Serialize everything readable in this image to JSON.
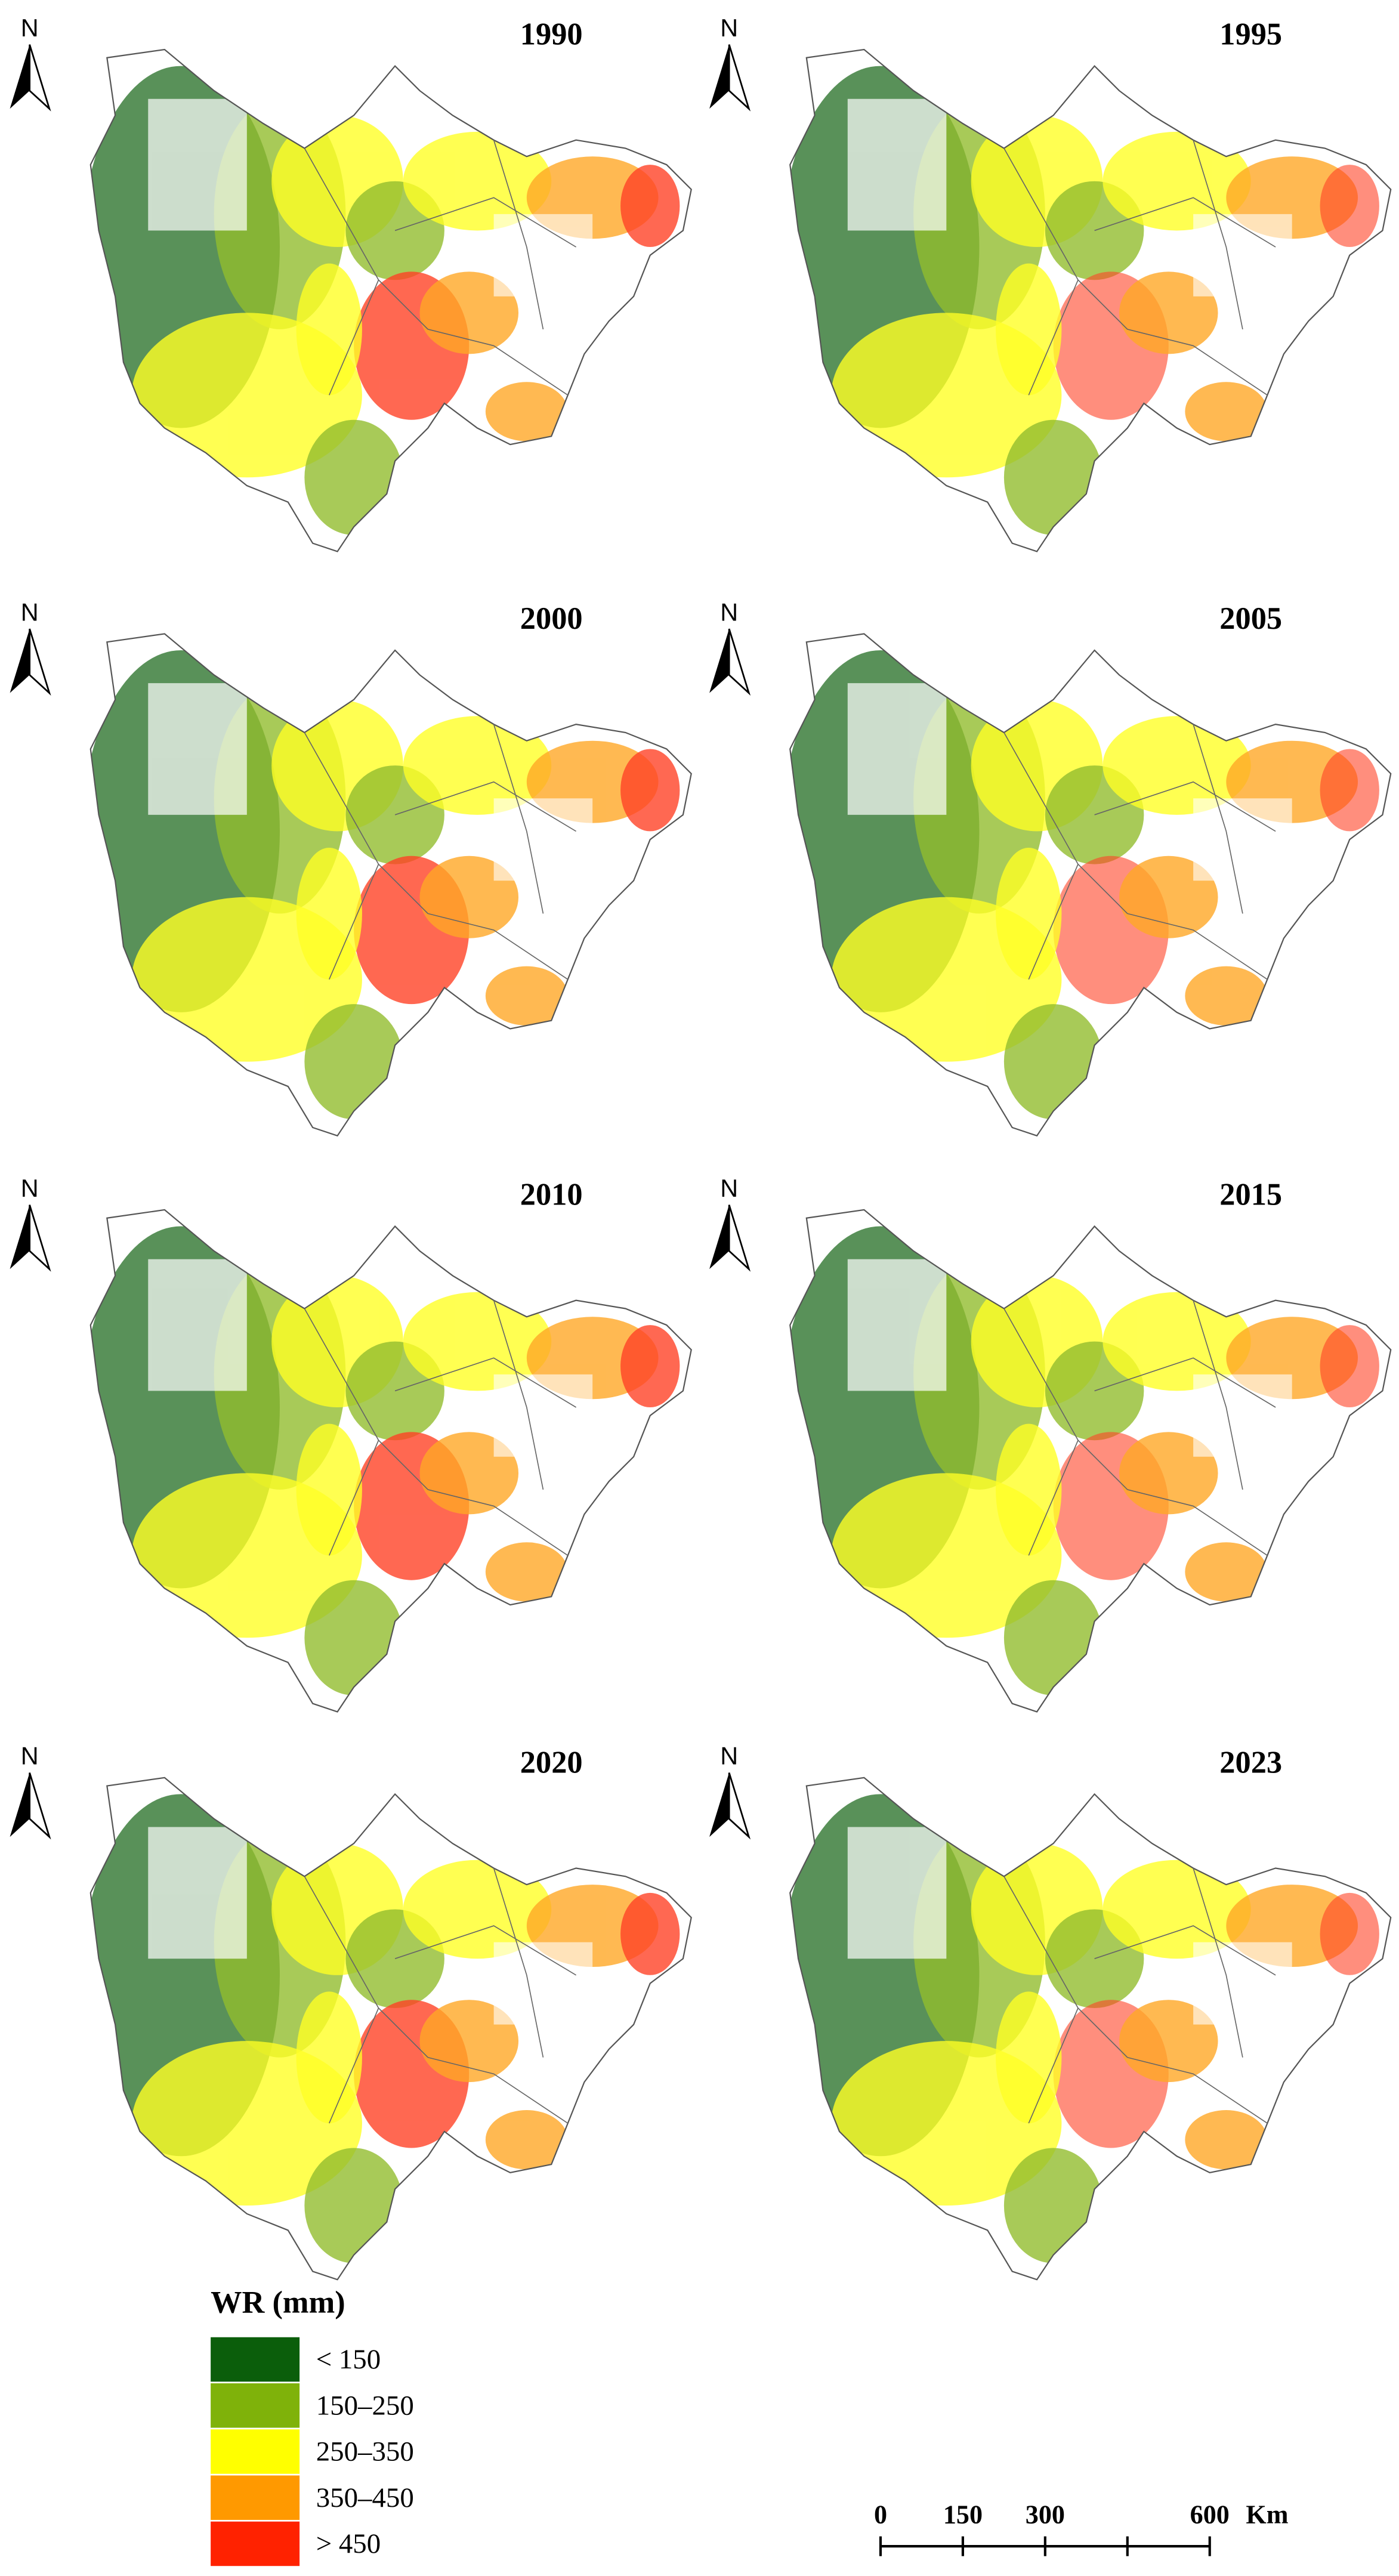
{
  "panels": [
    {
      "title": "1990"
    },
    {
      "title": "1995"
    },
    {
      "title": "2000"
    },
    {
      "title": "2005"
    },
    {
      "title": "2010"
    },
    {
      "title": "2015"
    },
    {
      "title": "2020"
    },
    {
      "title": "2023"
    }
  ],
  "north_label": "N",
  "legend": {
    "title": "WR (mm)",
    "items": [
      {
        "label": "< 150",
        "color": "#0b5e0b"
      },
      {
        "label": "150–250",
        "color": "#7fb20a"
      },
      {
        "label": "250–350",
        "color": "#ffff00"
      },
      {
        "label": "350–450",
        "color": "#ff9900"
      },
      {
        "label": "> 450",
        "color": "#ff2200"
      }
    ]
  },
  "scale_bar": {
    "ticks": [
      0,
      150,
      300,
      600
    ],
    "unit": "Km"
  }
}
